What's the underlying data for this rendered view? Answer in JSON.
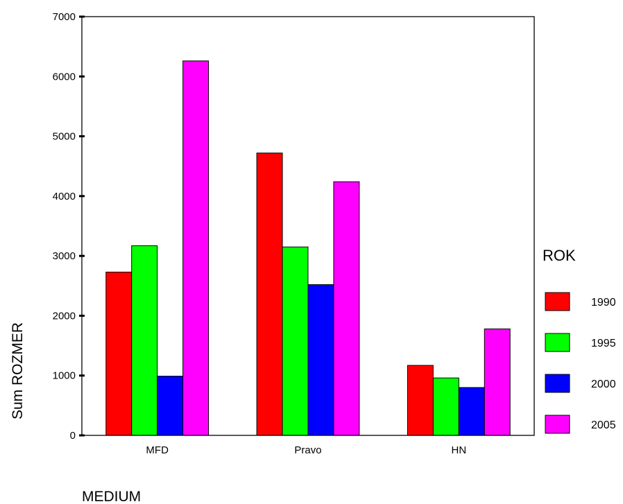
{
  "chart_data": {
    "type": "bar",
    "xlabel": "MEDIUM",
    "ylabel": "Sum ROZMER",
    "categories": [
      "MFD",
      "Pravo",
      "HN"
    ],
    "ylim": [
      0,
      7000
    ],
    "yticks": [
      0,
      1000,
      2000,
      3000,
      4000,
      5000,
      6000,
      7000
    ],
    "grid": false,
    "legend": {
      "title": "ROK",
      "placement": "right"
    },
    "series": [
      {
        "name": "1990",
        "color": "#ff0000",
        "values": [
          2730,
          4720,
          1170
        ]
      },
      {
        "name": "1995",
        "color": "#00ff00",
        "values": [
          3170,
          3150,
          960
        ]
      },
      {
        "name": "2000",
        "color": "#0000ff",
        "values": [
          990,
          2520,
          800
        ]
      },
      {
        "name": "2005",
        "color": "#ff00ff",
        "values": [
          6260,
          4240,
          1780
        ]
      }
    ]
  }
}
